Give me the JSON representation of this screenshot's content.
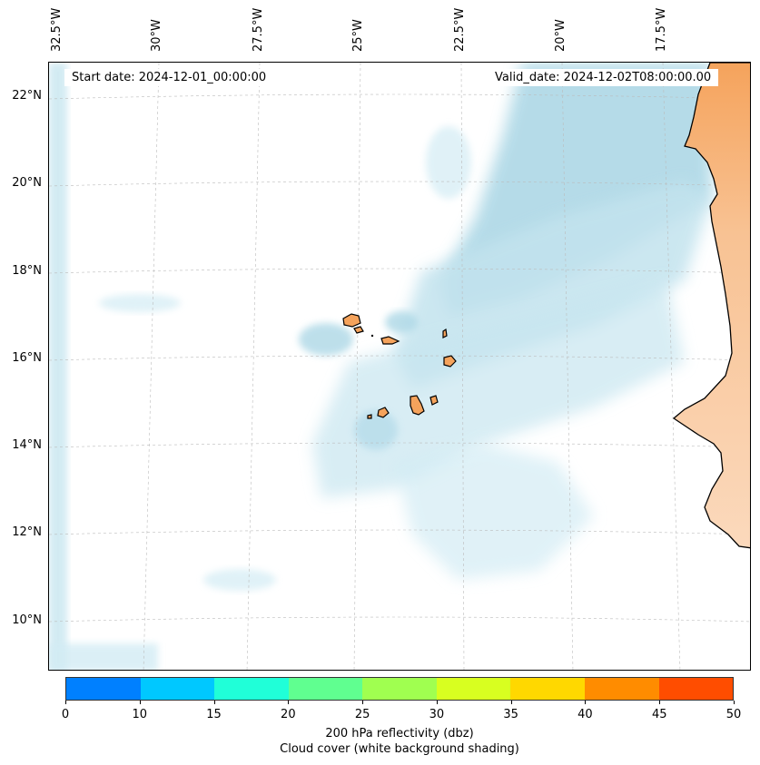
{
  "map": {
    "start_date": "Start date: 2024-12-01_00:00:00",
    "valid_date": "Valid_date: 2024-12-02T08:00:00.00",
    "lon_labels": [
      "32.5°W",
      "30°W",
      "27.5°W",
      "25°W",
      "22.5°W",
      "20°W",
      "17.5°W"
    ],
    "lat_labels": [
      "22°N",
      "20°N",
      "18°N",
      "16°N",
      "14°N",
      "12°N",
      "10°N"
    ],
    "land_color": "#f5a35c",
    "cloud_color": "#add8e6",
    "coastline_color": "#000000",
    "gridlines": true
  },
  "colorbar": {
    "ticks": [
      "0",
      "10",
      "15",
      "20",
      "25",
      "30",
      "35",
      "40",
      "45",
      "50"
    ],
    "colors": [
      "#0080ff",
      "#00c8ff",
      "#20ffd8",
      "#60ff90",
      "#a0ff50",
      "#d8ff20",
      "#ffd800",
      "#ff8c00",
      "#ff4d00"
    ],
    "label": "200 hPa reflectivity (dbz)",
    "sublabel": "Cloud cover (white background shading)"
  }
}
